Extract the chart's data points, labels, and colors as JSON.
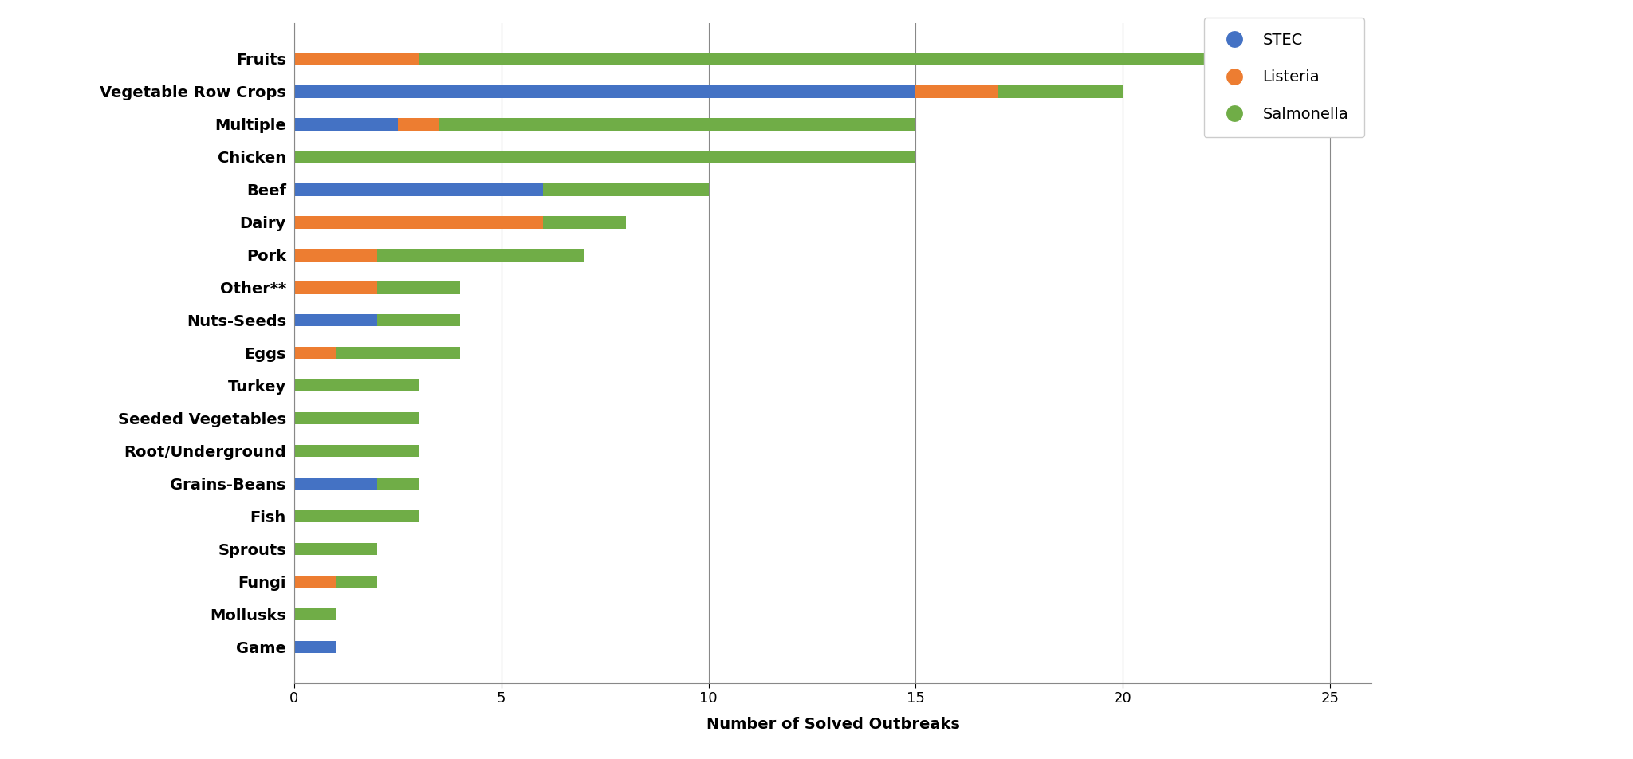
{
  "categories": [
    "Fruits",
    "Vegetable Row Crops",
    "Multiple",
    "Chicken",
    "Beef",
    "Dairy",
    "Pork",
    "Other**",
    "Nuts-Seeds",
    "Eggs",
    "Turkey",
    "Seeded Vegetables",
    "Root/Underground",
    "Grains-Beans",
    "Fish",
    "Sprouts",
    "Fungi",
    "Mollusks",
    "Game"
  ],
  "stec": [
    0,
    15,
    2.5,
    0,
    6,
    0,
    0,
    0,
    2,
    0,
    0,
    0,
    0,
    2,
    0,
    0,
    0,
    0,
    1
  ],
  "listeria": [
    3,
    2,
    1,
    0,
    0,
    6,
    2,
    2,
    0,
    1,
    0,
    0,
    0,
    0,
    0,
    0,
    1,
    0,
    0
  ],
  "salmonella": [
    19,
    3,
    11.5,
    15,
    4,
    2,
    5,
    2,
    2,
    3,
    3,
    3,
    3,
    1,
    3,
    2,
    1,
    1,
    0
  ],
  "stec_color": "#4472c4",
  "listeria_color": "#ed7d31",
  "salmonella_color": "#70ad47",
  "xlabel": "Number of Solved Outbreaks",
  "xlim": [
    0,
    26
  ],
  "xticks": [
    0,
    5,
    10,
    15,
    20,
    25
  ],
  "background_color": "#ffffff",
  "grid_color": "#888888",
  "ylabel_fontsize": 14,
  "xlabel_fontsize": 14,
  "tick_fontsize": 13,
  "legend_fontsize": 14
}
